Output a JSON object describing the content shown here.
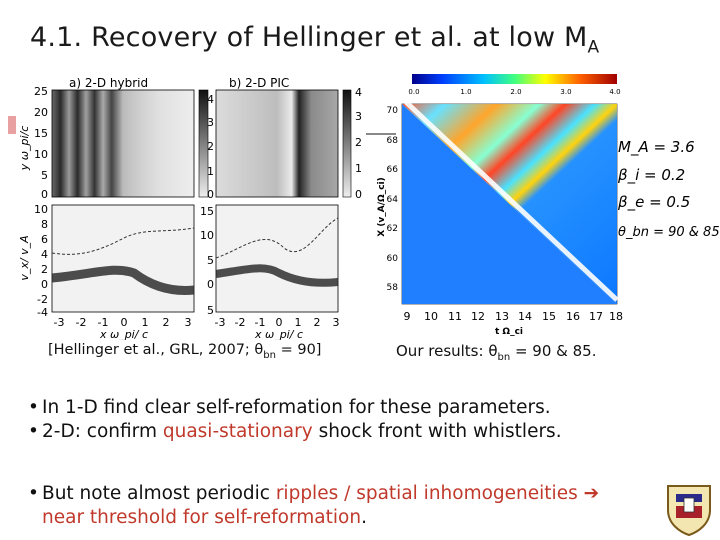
{
  "title": {
    "text": "4.1. Recovery of Hellinger et al. at low M",
    "sub": "A"
  },
  "left_figure": {
    "panel_a_title": "a) 2-D hybrid",
    "panel_b_title": "b) 2-D PIC",
    "top_left_ticks": [
      "25",
      "20",
      "15",
      "10",
      "5",
      "0"
    ],
    "top_mid_ticks": [
      "4",
      "3",
      "2",
      "1",
      "0"
    ],
    "top_right_ticks": [
      "4",
      "3",
      "2",
      "1",
      "0"
    ],
    "bottom_left_ticks": [
      "10",
      "8",
      "6",
      "4",
      "2",
      "0",
      "-2",
      "-4"
    ],
    "bottom_mid_ticks": [
      "15",
      "10",
      "5",
      "0",
      "5"
    ],
    "x_ticks_a": [
      "-3",
      "-2",
      "-1",
      "0",
      "1",
      "2",
      "3"
    ],
    "x_ticks_b": [
      "-3",
      "-2",
      "-1",
      "0",
      "1",
      "2",
      "3"
    ],
    "ylabel_top": "y ω_pi/c",
    "ylabel_bottom": "v_x/ v_A",
    "xlabel_a": "x ω_pi/ c",
    "xlabel_b": "x ω_pi/ c"
  },
  "right_figure": {
    "colorbar_ticks": [
      "0.0",
      "1.0",
      "2.0",
      "3.0",
      "4.0"
    ],
    "y_ticks": [
      "70",
      "68",
      "66",
      "64",
      "62",
      "60",
      "58"
    ],
    "x_ticks": [
      "9",
      "10",
      "11",
      "12",
      "13",
      "14",
      "15",
      "16",
      "17",
      "18"
    ],
    "ylabel": "X (v_A/Ω_ci)",
    "xlabel": "t Ω_ci",
    "params": [
      "M_A = 3.6",
      "β_i = 0.2",
      "β_e = 0.5",
      "θ_bn = 90 & 85°"
    ]
  },
  "captions": {
    "left": "[Hellinger et al., GRL, 2007; θ",
    "left_sub": "bn",
    "left_end": " = 90]",
    "right": "Our results: θ",
    "right_sub": "bn",
    "right_end": " = 90 & 85."
  },
  "bullets": {
    "b1": "In 1-D find clear self-reformation for these parameters.",
    "b2_pre": "2-D: confirm ",
    "b2_red": "quasi-stationary",
    "b2_post": " shock front with whistlers.",
    "b3_pre": "But note almost periodic ",
    "b3_red": "ripples / spatial inhomogeneities",
    "b4_red": "near threshold for self-reformation",
    "b4_post": "."
  },
  "colors": {
    "red": "#c0392b",
    "arrow": "#c0392b"
  }
}
